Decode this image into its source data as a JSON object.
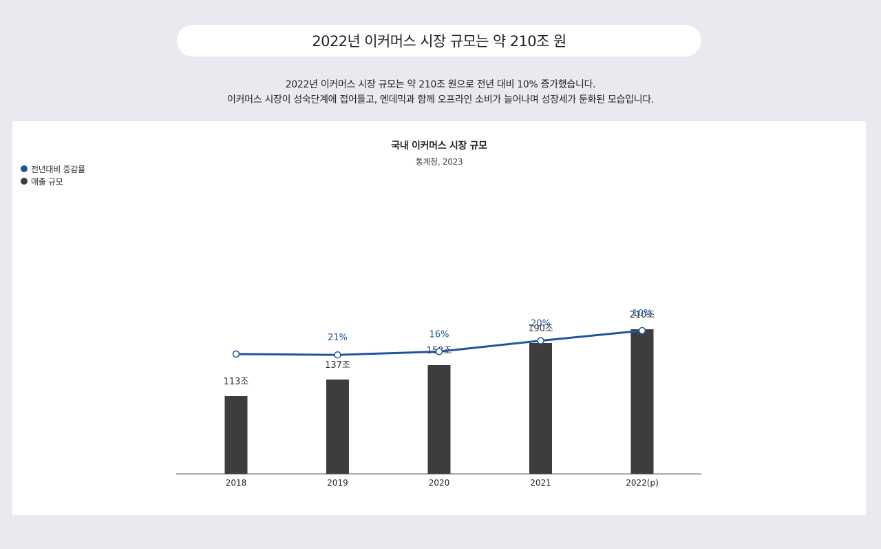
{
  "header": {
    "title": "2022년 이커머스 시장 규모는 약 210조 원"
  },
  "description": {
    "line1": "2022년 이커머스 시장 규모는 약 210조 원으로 전년 대비 10% 증가했습니다.",
    "line2": "이커머스 시장이 성숙단계에 접어들고, 엔데믹과 함께 오프라인 소비가 늘어나며 성장세가 둔화된 모습입니다."
  },
  "legend": {
    "items": [
      {
        "label": "전년대비 증감률",
        "color": "#1f55a0"
      },
      {
        "label": "매출 규모",
        "color": "#3d3d3d"
      }
    ]
  },
  "chart_data": {
    "type": "bar",
    "title": "국내 이커머스 시장 규모",
    "subtitle": "통계청, 2023",
    "categories": [
      "2018",
      "2019",
      "2020",
      "2021",
      "2022(p)"
    ],
    "series": [
      {
        "name": "매출 규모",
        "type": "bar",
        "values": [
          113,
          137,
          158,
          190,
          210
        ],
        "labels": [
          "113조",
          "137조",
          "158조",
          "190조",
          "210조"
        ],
        "color": "#3d3d3d"
      },
      {
        "name": "전년대비 증감률",
        "type": "line",
        "values": [
          null,
          21,
          16,
          20,
          10
        ],
        "labels": [
          "",
          "21%",
          "16%",
          "20%",
          "10%"
        ],
        "color": "#1f55a0"
      }
    ],
    "legend_position": "top-left",
    "grid": false
  }
}
